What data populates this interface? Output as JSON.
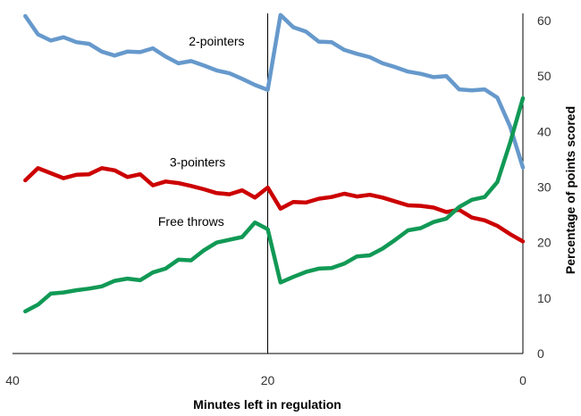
{
  "chart_data": {
    "type": "line",
    "xlabel": "Minutes left in regulation",
    "ylabel": "Percentage of points scored",
    "xlim": [
      40,
      0
    ],
    "ylim": [
      0,
      60
    ],
    "x_ticks": [
      40,
      20,
      0
    ],
    "y_ticks": [
      0,
      10,
      20,
      30,
      40,
      50,
      60
    ],
    "x_reversed": true,
    "y_axis_side": "right",
    "vertical_gridlines_at": [
      20,
      0
    ],
    "colors": {
      "two_pointers": "#6699cc",
      "three_pointers": "#cc0000",
      "free_throws": "#119955"
    },
    "x": [
      39,
      38,
      37,
      36,
      35,
      34,
      33,
      32,
      31,
      30,
      29,
      28,
      27,
      26,
      25,
      24,
      23,
      22,
      21,
      20,
      19,
      18,
      17,
      16,
      15,
      14,
      13,
      12,
      11,
      10,
      9,
      8,
      7,
      6,
      5,
      4,
      3,
      2,
      1,
      0
    ],
    "series": [
      {
        "name": "2-pointers",
        "color_key": "two_pointers",
        "values": [
          60.8,
          57.5,
          56.4,
          57.0,
          56.1,
          55.8,
          54.4,
          53.7,
          54.4,
          54.3,
          55.0,
          53.5,
          52.3,
          52.7,
          51.9,
          51.0,
          50.5,
          49.5,
          48.4,
          47.5,
          61.0,
          58.8,
          58.0,
          56.2,
          56.1,
          54.7,
          54.0,
          53.4,
          52.3,
          51.6,
          50.8,
          50.4,
          49.8,
          50.0,
          47.6,
          47.4,
          47.6,
          46.1,
          40.9,
          33.5
        ]
      },
      {
        "name": "3-pointers",
        "color_key": "three_pointers",
        "values": [
          31.2,
          33.4,
          32.5,
          31.6,
          32.2,
          32.3,
          33.4,
          33.0,
          31.8,
          32.3,
          30.3,
          31.0,
          30.7,
          30.2,
          29.6,
          28.9,
          28.7,
          29.4,
          28.1,
          29.9,
          26.1,
          27.3,
          27.2,
          27.9,
          28.2,
          28.8,
          28.3,
          28.6,
          28.1,
          27.4,
          26.7,
          26.6,
          26.3,
          25.5,
          25.9,
          24.5,
          24.0,
          23.0,
          21.5,
          20.2
        ]
      },
      {
        "name": "Free throws",
        "color_key": "free_throws",
        "values": [
          7.6,
          8.8,
          10.8,
          11.0,
          11.4,
          11.7,
          12.1,
          13.1,
          13.5,
          13.2,
          14.6,
          15.3,
          16.9,
          16.8,
          18.6,
          20.0,
          20.5,
          21.0,
          23.6,
          22.4,
          12.8,
          13.8,
          14.7,
          15.3,
          15.4,
          16.2,
          17.5,
          17.7,
          18.9,
          20.5,
          22.2,
          22.6,
          23.7,
          24.3,
          26.4,
          27.7,
          28.2,
          30.9,
          38.0,
          46.0
        ]
      }
    ],
    "series_labels": [
      {
        "text": "2-pointers",
        "x": 24,
        "y": 55.5
      },
      {
        "text": "3-pointers",
        "x": 25.5,
        "y": 33.7
      },
      {
        "text": "Free throws",
        "x": 26,
        "y": 23
      }
    ]
  }
}
